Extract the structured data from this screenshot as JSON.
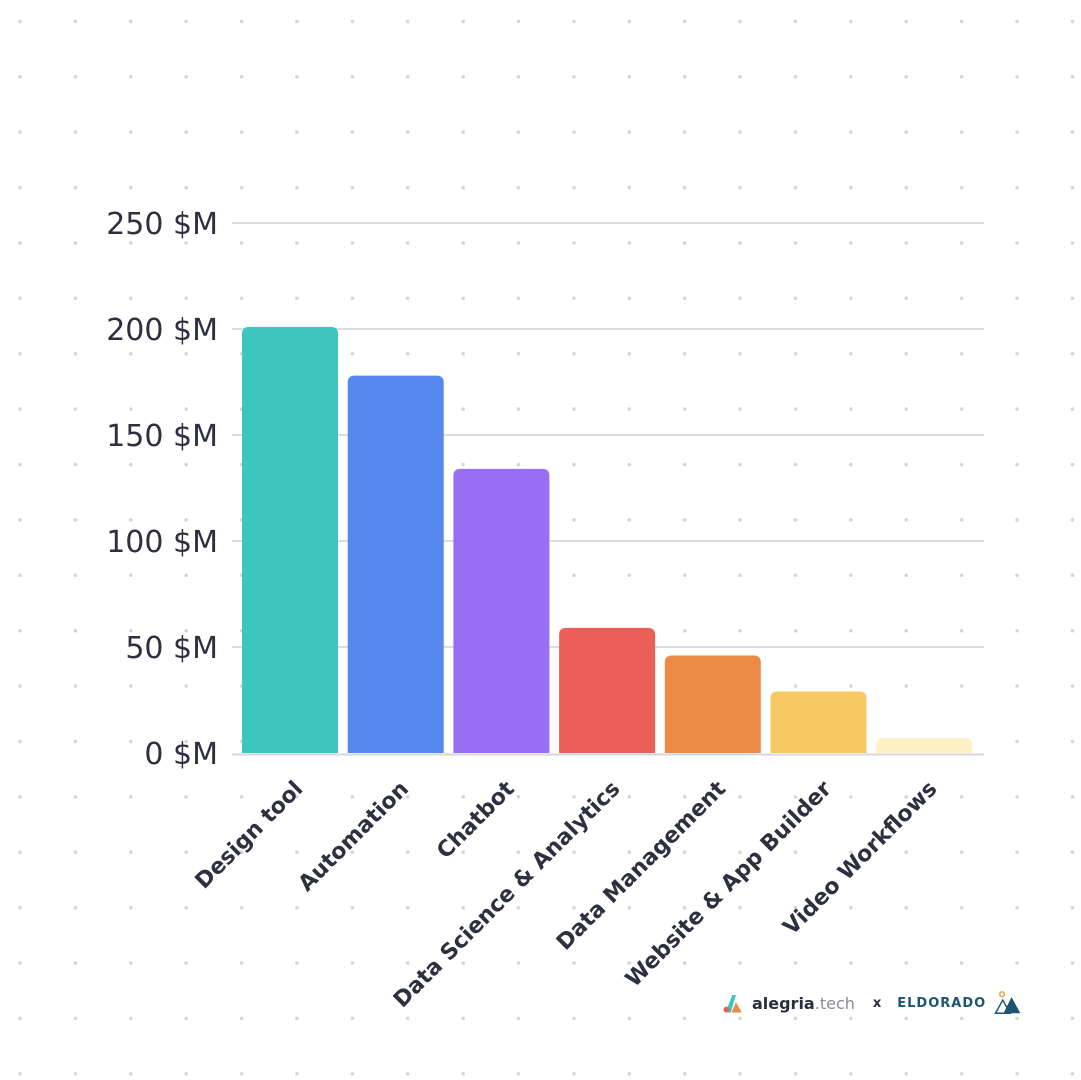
{
  "chart_data": {
    "type": "bar",
    "categories": [
      "Design tool",
      "Automation",
      "Chatbot",
      "Data Science & Analytics",
      "Data Management",
      "Website & App Builder",
      "Video Workflows"
    ],
    "values": [
      201,
      178,
      134,
      59,
      46,
      29,
      7
    ],
    "colors": [
      "#3ec6be",
      "#5589ee",
      "#976ef4",
      "#ec5f58",
      "#ee8a47",
      "#f6c963",
      "#fdf0c4"
    ],
    "yticks": [
      0,
      50,
      100,
      150,
      200,
      250
    ],
    "ytick_labels": [
      "0 $M",
      "50 $M",
      "100 $M",
      "150 $M",
      "200 $M",
      "250 $M"
    ],
    "ylim": [
      0,
      250
    ],
    "grid": true,
    "title": "",
    "xlabel": "",
    "ylabel": ""
  },
  "branding": {
    "brand_a": "alegria",
    "brand_b": ".tech",
    "separator": "x",
    "brand_c": "ELDORADO"
  }
}
